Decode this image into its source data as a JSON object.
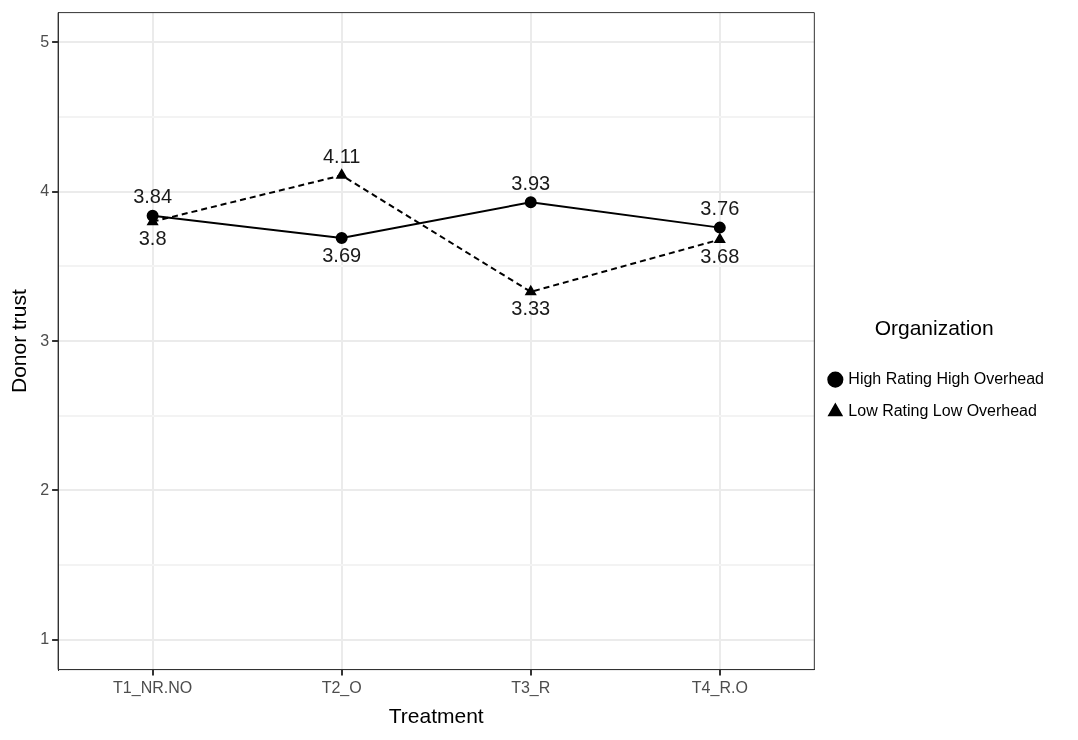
{
  "chart_data": {
    "type": "line",
    "xlabel": "Treatment",
    "ylabel": "Donor trust",
    "legend_title": "Organization",
    "categories": [
      "T1_NR.NO",
      "T2_O",
      "T3_R",
      "T4_R.O"
    ],
    "series": [
      {
        "name": "High Rating High Overhead",
        "color": "#000000",
        "values": [
          3.84,
          3.69,
          3.93,
          3.76
        ],
        "marker": "circle",
        "line_style": "solid",
        "value_labels": [
          "3.84",
          "3.69",
          "3.93",
          "3.76"
        ]
      },
      {
        "name": "Low Rating Low Overhead",
        "color": "#000000",
        "values": [
          3.8,
          4.11,
          3.33,
          3.68
        ],
        "marker": "triangle",
        "line_style": "dashed",
        "value_labels": [
          "3.8",
          "4.11",
          "3.33",
          "3.68"
        ]
      }
    ],
    "ylim": [
      0.8,
      5.2
    ],
    "yticks": [
      1,
      {
        "value": 1.5,
        "label": null
      },
      2,
      {
        "value": 2.5,
        "label": null
      },
      3,
      {
        "value": 3.5,
        "label": null
      },
      4,
      {
        "value": 4.5,
        "label": null
      },
      5
    ],
    "grid": true,
    "legend": "right"
  }
}
